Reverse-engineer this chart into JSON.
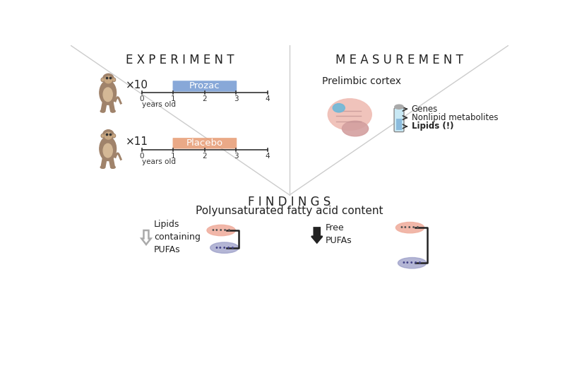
{
  "bg_color": "#ffffff",
  "title_experiment": "E X P E R I M E N T",
  "title_measurement": "M E A S U R E M E N T",
  "title_findings": "F I N D I N G S",
  "subtitle_findings": "Polyunsaturated fatty acid content",
  "prozac_label": "Prozac",
  "placebo_label": "Placebo",
  "prozac_color": "#7b9fd4",
  "placebo_color": "#e8a07a",
  "x10_label": "×10",
  "x11_label": "×11",
  "prelimbic_label": "Prelimbic cortex",
  "genes_label": "Genes",
  "nonlipid_label": "Nonlipid metabolites",
  "lipids_label": "Lipids (!)",
  "finding1_text": "Lipids\ncontaining\nPUFAs",
  "finding2_text": "Free\nPUFAs",
  "ellipse_peach": "#f0b0a0",
  "ellipse_lavender": "#9b9ec8",
  "divider_color": "#cccccc",
  "text_color": "#222222",
  "title_fontsize": 12,
  "subtitle_fontsize": 11
}
